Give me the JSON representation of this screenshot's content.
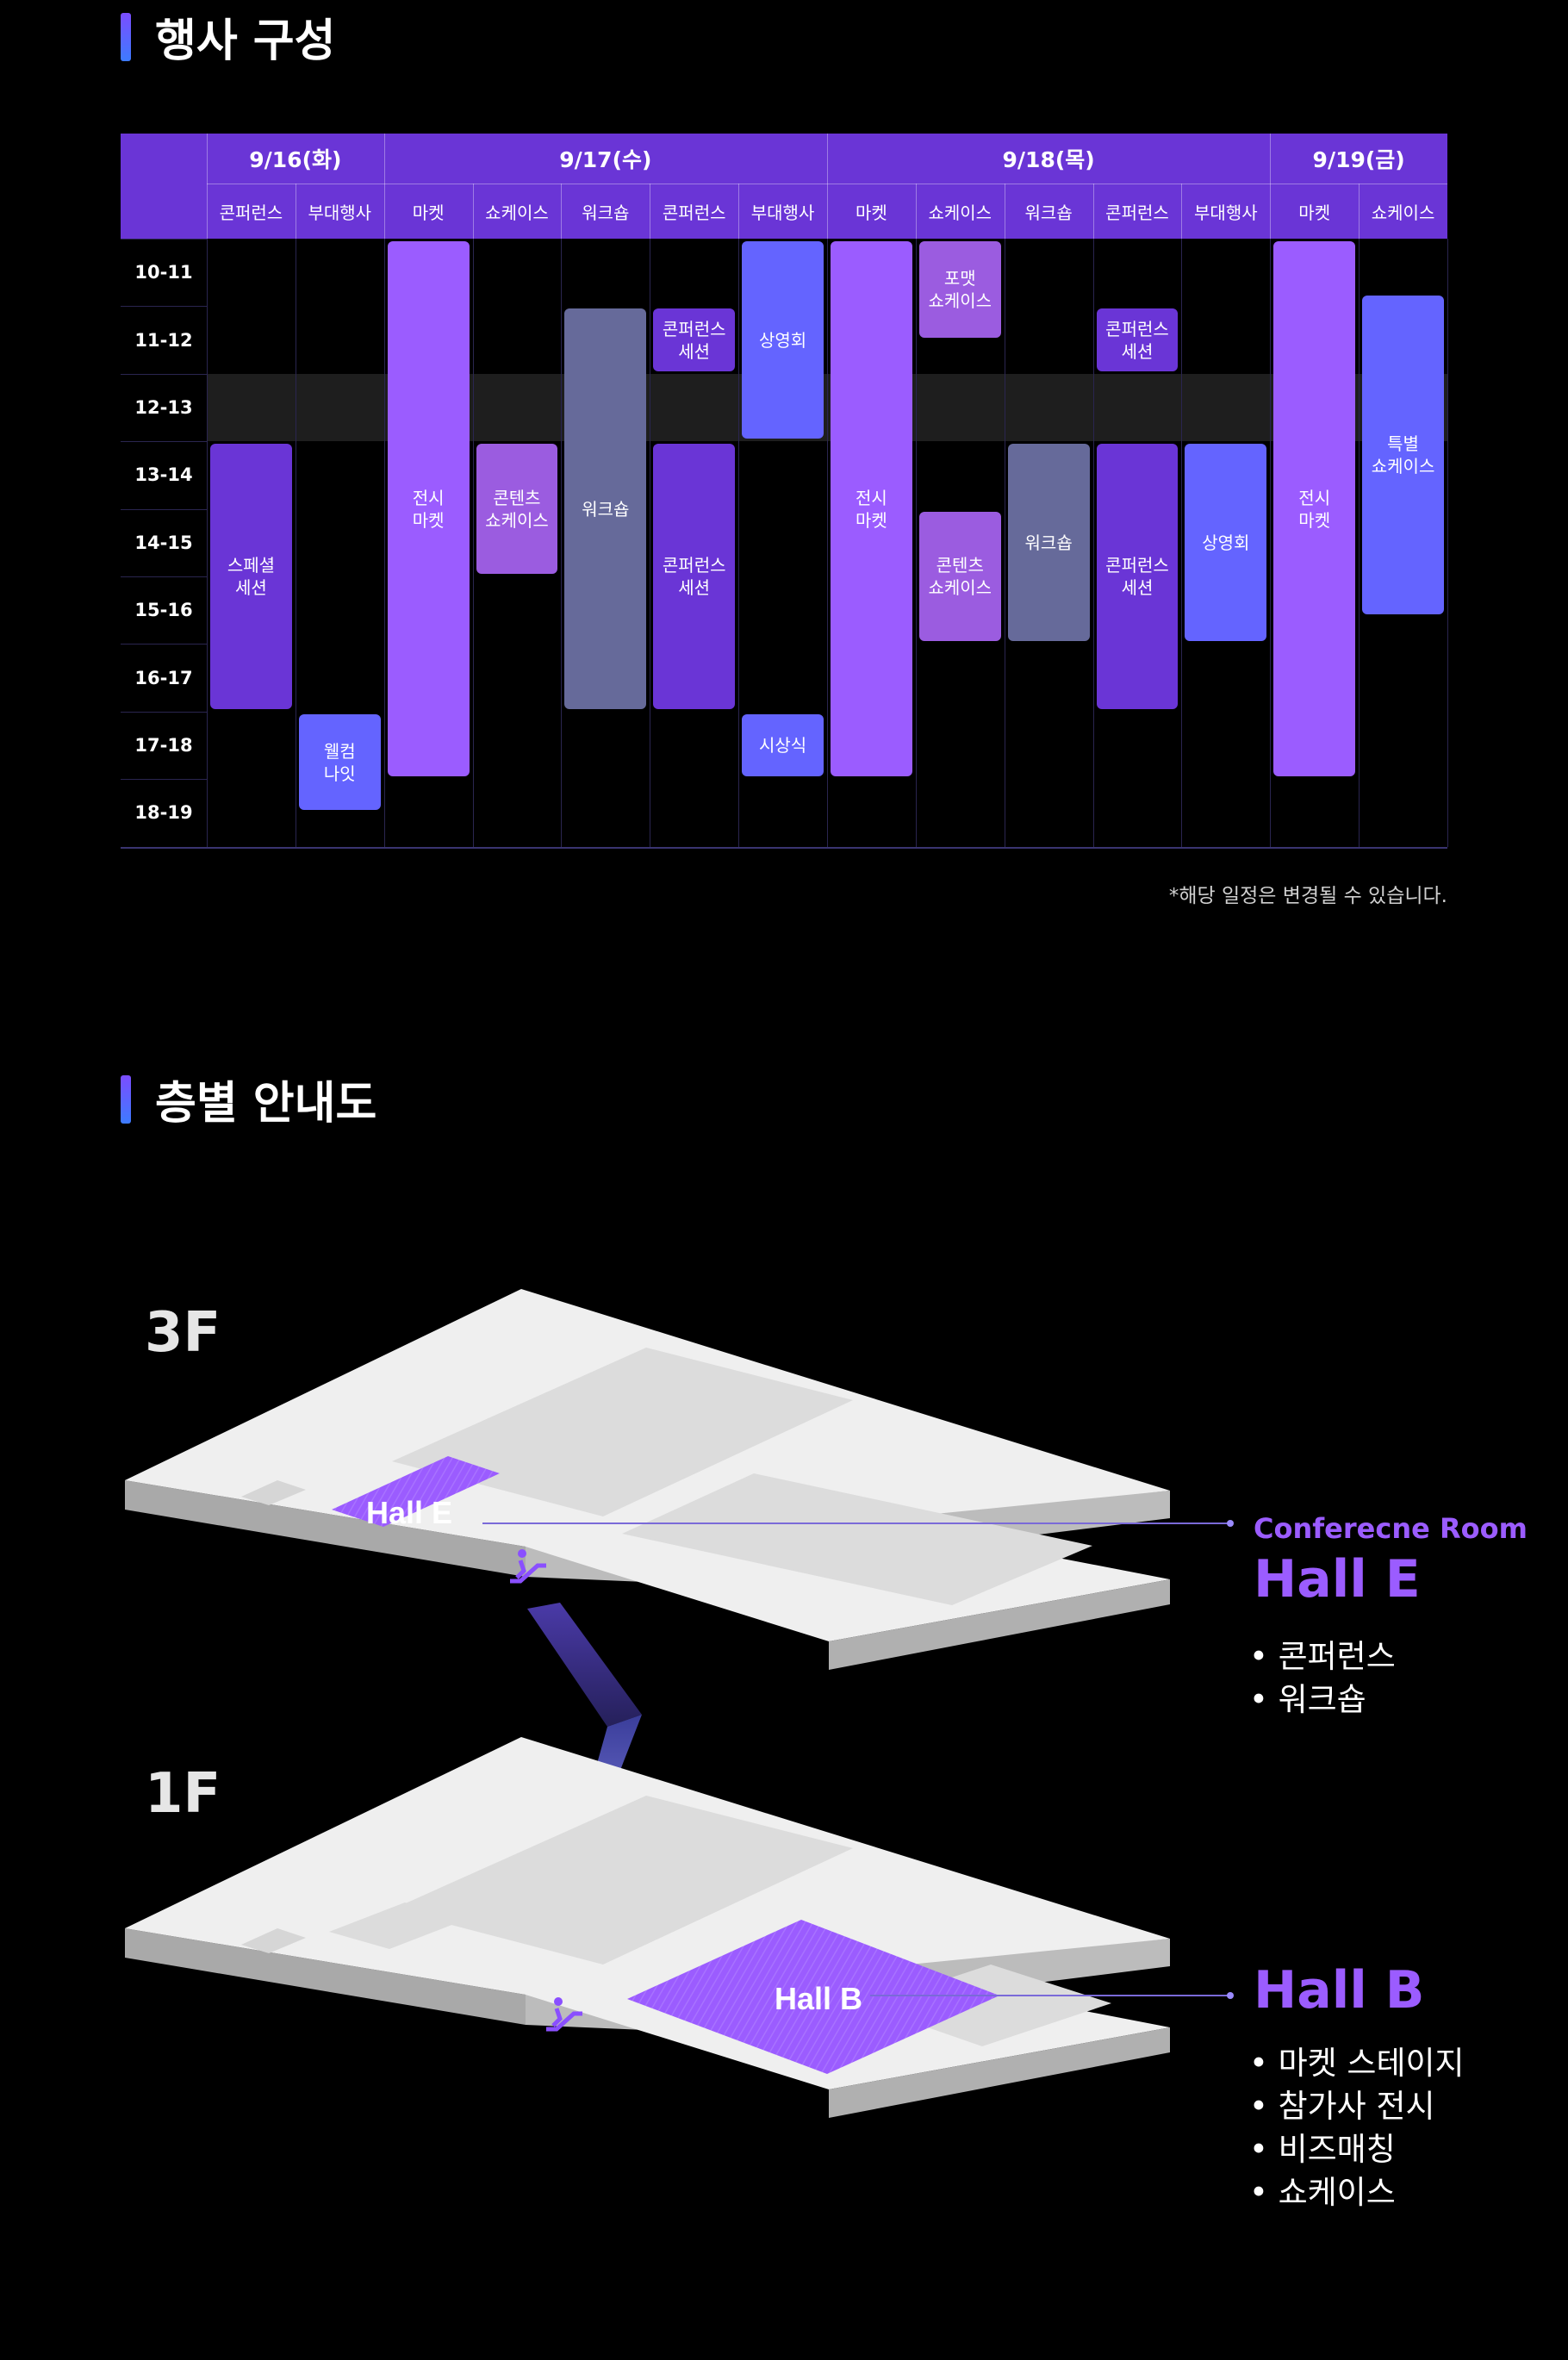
{
  "section1": {
    "title": "행사 구성"
  },
  "section2": {
    "title": "층별 안내도"
  },
  "schedule": {
    "dates": [
      {
        "label": "9/16(화)",
        "columns": [
          "콘퍼런스",
          "부대행사"
        ]
      },
      {
        "label": "9/17(수)",
        "columns": [
          "마켓",
          "쇼케이스",
          "워크숍",
          "콘퍼런스",
          "부대행사"
        ]
      },
      {
        "label": "9/18(목)",
        "columns": [
          "마켓",
          "쇼케이스",
          "워크숍",
          "콘퍼런스",
          "부대행사"
        ]
      },
      {
        "label": "9/19(금)",
        "columns": [
          "마켓",
          "쇼케이스"
        ]
      }
    ],
    "times": [
      "10-11",
      "11-12",
      "12-13",
      "13-14",
      "14-15",
      "15-16",
      "16-17",
      "17-18",
      "18-19"
    ],
    "lunch_row": 2,
    "events": [
      {
        "col": 0,
        "start": 3,
        "end": 7,
        "label": "스페셜\n세션",
        "color": "#6a35d6"
      },
      {
        "col": 1,
        "start": 7,
        "end": 8.5,
        "label": "웰컴\n나잇",
        "color": "#6464ff"
      },
      {
        "col": 2,
        "start": 0,
        "end": 8,
        "label": "전시\n마켓",
        "color": "#9b5cff"
      },
      {
        "col": 3,
        "start": 3,
        "end": 5,
        "label": "콘텐츠\n쇼케이스",
        "color": "#9b5ce0"
      },
      {
        "col": 4,
        "start": 1,
        "end": 7,
        "label": "워크숍",
        "color": "#666a9a"
      },
      {
        "col": 5,
        "start": 1,
        "end": 2,
        "label": "콘퍼런스\n세션",
        "color": "#6a35d6"
      },
      {
        "col": 5,
        "start": 3,
        "end": 7,
        "label": "콘퍼런스\n세션",
        "color": "#6a35d6"
      },
      {
        "col": 6,
        "start": 0,
        "end": 3,
        "label": "상영회",
        "color": "#6464ff"
      },
      {
        "col": 6,
        "start": 7,
        "end": 8,
        "label": "시상식",
        "color": "#6464ff"
      },
      {
        "col": 7,
        "start": 0,
        "end": 8,
        "label": "전시\n마켓",
        "color": "#9b5cff"
      },
      {
        "col": 8,
        "start": 0,
        "end": 1.5,
        "label": "포맷\n쇼케이스",
        "color": "#9b5ce0"
      },
      {
        "col": 8,
        "start": 4,
        "end": 6,
        "label": "콘텐츠\n쇼케이스",
        "color": "#9b5ce0"
      },
      {
        "col": 9,
        "start": 3,
        "end": 6,
        "label": "워크숍",
        "color": "#666a9a"
      },
      {
        "col": 10,
        "start": 1,
        "end": 2,
        "label": "콘퍼런스\n세션",
        "color": "#6a35d6"
      },
      {
        "col": 10,
        "start": 3,
        "end": 7,
        "label": "콘퍼런스\n세션",
        "color": "#6a35d6"
      },
      {
        "col": 11,
        "start": 3,
        "end": 6,
        "label": "상영회",
        "color": "#6464ff"
      },
      {
        "col": 12,
        "start": 0,
        "end": 8,
        "label": "전시\n마켓",
        "color": "#9b5cff"
      },
      {
        "col": 13,
        "start": 0.8,
        "end": 5.6,
        "label": "특별\n쇼케이스",
        "color": "#6464ff"
      }
    ],
    "note": "*해당 일정은 변경될 수 있습니다."
  },
  "floors": {
    "f3": {
      "label": "3F",
      "hall_tag": "Hall E",
      "room_type": "Conferecne Room",
      "hall_name": "Hall E",
      "items": [
        "콘퍼런스",
        "워크숍"
      ]
    },
    "f1": {
      "label": "1F",
      "hall_tag": "Hall B",
      "hall_name": "Hall B",
      "items": [
        "마켓 스테이지",
        "참가사 전시",
        "비즈매칭",
        "쇼케이스"
      ]
    }
  },
  "colors": {
    "header": "#6a35d6",
    "accent": "#9b5cff",
    "grid_line": "#2a2550",
    "lunch_band": "#1e1e1e"
  }
}
